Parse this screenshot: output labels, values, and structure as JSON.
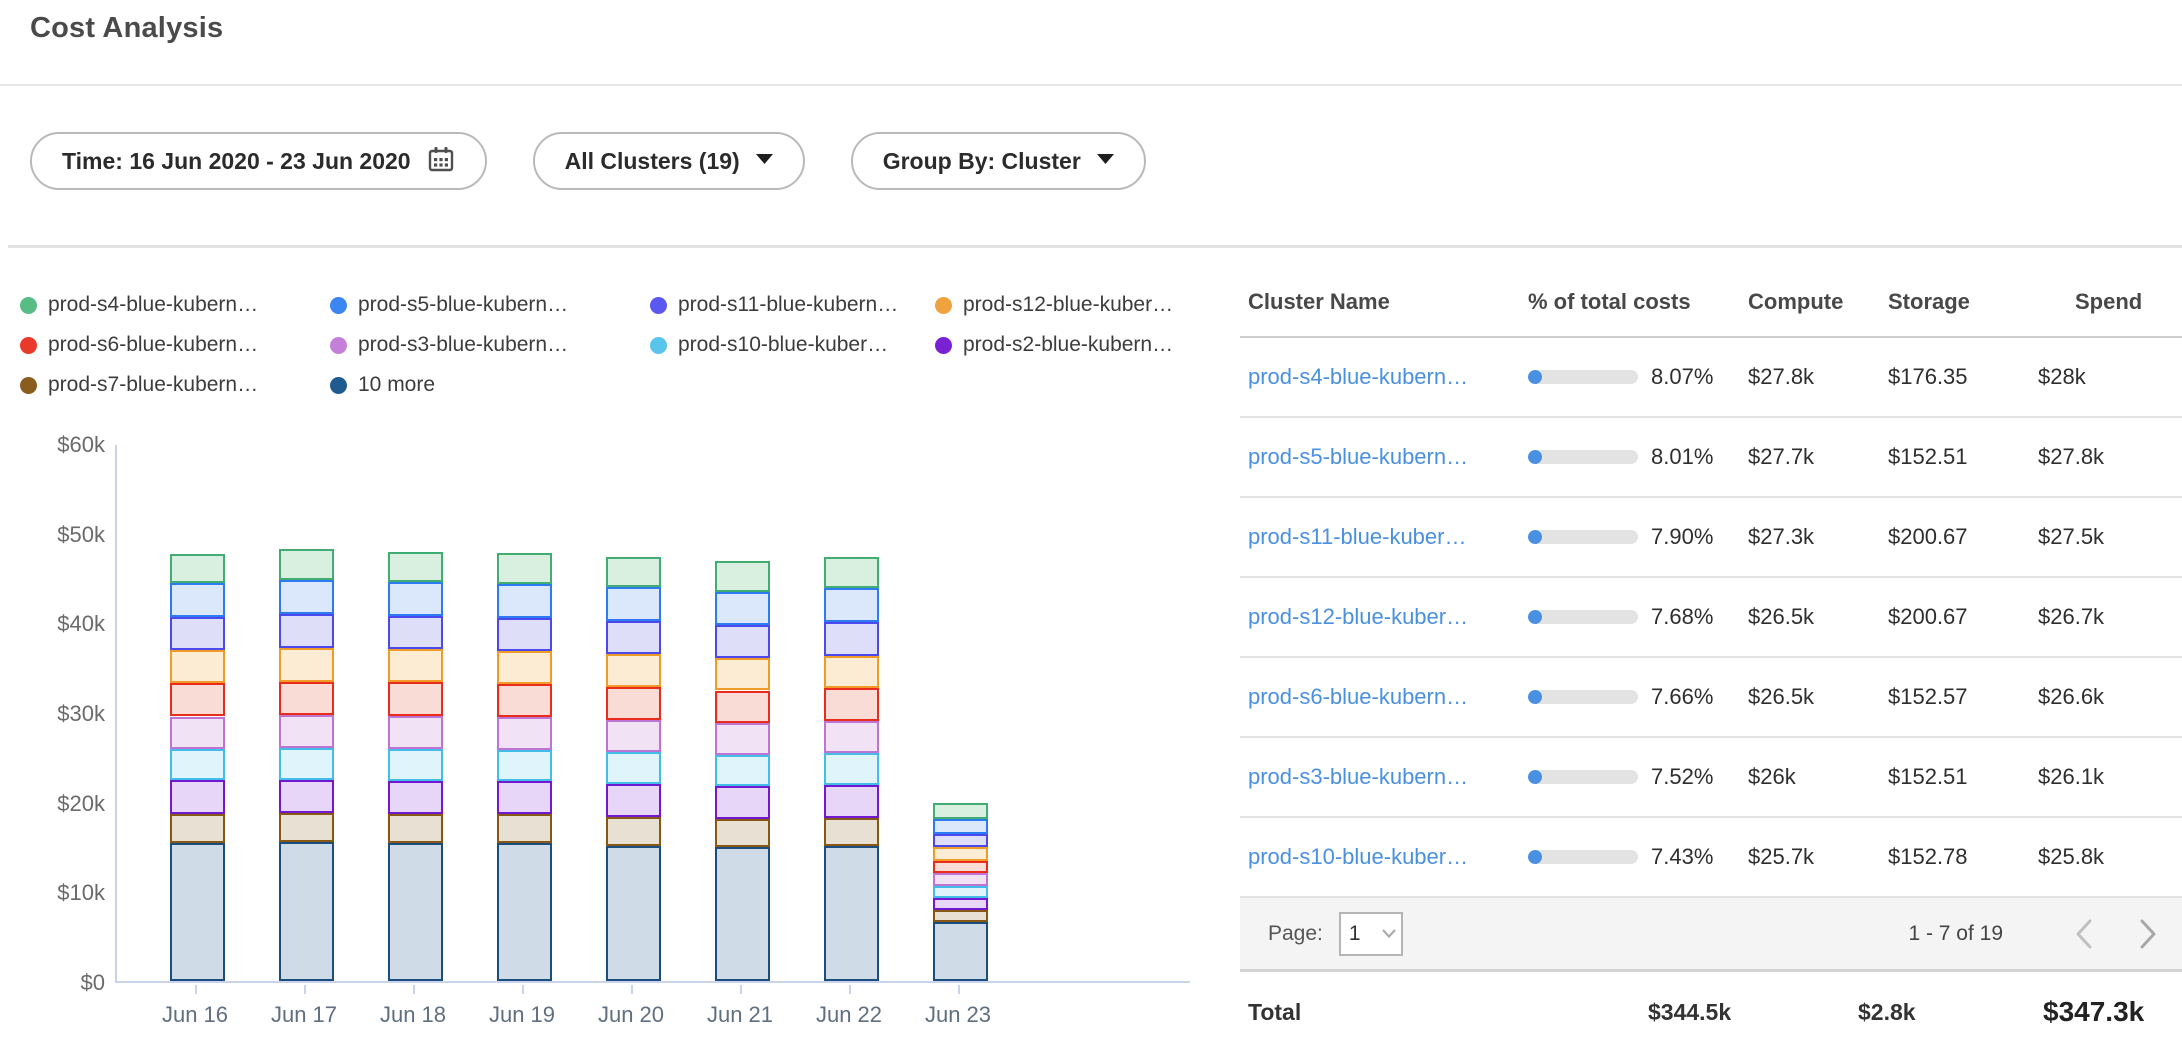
{
  "header": {
    "title": "Cost Analysis"
  },
  "filters": {
    "time": {
      "label": "Time: 16 Jun 2020 - 23 Jun 2020",
      "icon": "calendar"
    },
    "clusters": {
      "label": "All Clusters (19)",
      "icon": "caret-down"
    },
    "group_by": {
      "label": "Group By: Cluster",
      "icon": "caret-down"
    }
  },
  "chart_data": {
    "type": "bar",
    "stacked": true,
    "title": "",
    "xlabel": "",
    "ylabel": "",
    "value_unit": "USD thousands",
    "ylim": [
      0,
      60
    ],
    "grid": false,
    "legend_position": "top",
    "categories": [
      "Jun 16",
      "Jun 17",
      "Jun 18",
      "Jun 19",
      "Jun 20",
      "Jun 21",
      "Jun 22",
      "Jun 23"
    ],
    "y_ticks": [
      "$0",
      "$10k",
      "$20k",
      "$30k",
      "$40k",
      "$50k",
      "$60k"
    ],
    "legend": [
      {
        "label": "prod-s4-blue-kubern…",
        "color": "#57bd85"
      },
      {
        "label": "prod-s5-blue-kubern…",
        "color": "#3b86f0"
      },
      {
        "label": "prod-s11-blue-kubern…",
        "color": "#5b58f2"
      },
      {
        "label": "prod-s12-blue-kuber…",
        "color": "#f0a23f"
      },
      {
        "label": "prod-s6-blue-kubern…",
        "color": "#e8392b"
      },
      {
        "label": "prod-s3-blue-kubern…",
        "color": "#c480d8"
      },
      {
        "label": "prod-s10-blue-kuber…",
        "color": "#59c4ec"
      },
      {
        "label": "prod-s2-blue-kubern…",
        "color": "#7a22d3"
      },
      {
        "label": "prod-s7-blue-kubern…",
        "color": "#8a5c1e"
      },
      {
        "label": "10 more",
        "color": "#1f5b8e"
      }
    ],
    "series": [
      {
        "name": "10 more",
        "stroke": "#1b4e7e",
        "fill": "#cfdbe7",
        "values": [
          15.4,
          15.5,
          15.4,
          15.4,
          15.1,
          15.0,
          15.1,
          6.6
        ]
      },
      {
        "name": "prod-s7-blue-kubern…",
        "stroke": "#875814",
        "fill": "#e8e0d2",
        "values": [
          3.2,
          3.2,
          3.2,
          3.2,
          3.2,
          3.1,
          3.1,
          1.3
        ]
      },
      {
        "name": "prod-s2-blue-kubern…",
        "stroke": "#7018d2",
        "fill": "#e7d6f7",
        "values": [
          3.8,
          3.7,
          3.7,
          3.7,
          3.7,
          3.6,
          3.7,
          1.4
        ]
      },
      {
        "name": "prod-s10-blue-kuber…",
        "stroke": "#44bce8",
        "fill": "#e0f5fb",
        "values": [
          3.5,
          3.6,
          3.6,
          3.5,
          3.5,
          3.5,
          3.5,
          1.3
        ]
      },
      {
        "name": "prod-s3-blue-kubern…",
        "stroke": "#bd74d2",
        "fill": "#f1e2f5",
        "values": [
          3.6,
          3.7,
          3.7,
          3.6,
          3.6,
          3.6,
          3.6,
          1.4
        ]
      },
      {
        "name": "prod-s6-blue-kubern…",
        "stroke": "#ea2c1c",
        "fill": "#fadcd7",
        "values": [
          3.7,
          3.7,
          3.7,
          3.7,
          3.7,
          3.6,
          3.7,
          1.4
        ]
      },
      {
        "name": "prod-s12-blue-kuber…",
        "stroke": "#f09a28",
        "fill": "#fcecd4",
        "values": [
          3.7,
          3.7,
          3.7,
          3.7,
          3.7,
          3.6,
          3.6,
          1.6
        ]
      },
      {
        "name": "prod-s11-blue-kubern…",
        "stroke": "#4b49ee",
        "fill": "#dedef9",
        "values": [
          3.7,
          3.8,
          3.7,
          3.7,
          3.7,
          3.7,
          3.7,
          1.4
        ]
      },
      {
        "name": "prod-s5-blue-kubern…",
        "stroke": "#2c7bf2",
        "fill": "#dbe7fb",
        "values": [
          3.8,
          3.8,
          3.8,
          3.8,
          3.7,
          3.7,
          3.8,
          1.7
        ]
      },
      {
        "name": "prod-s4-blue-kubern…",
        "stroke": "#42ad72",
        "fill": "#d9efdf",
        "values": [
          3.2,
          3.5,
          3.4,
          3.4,
          3.4,
          3.4,
          3.5,
          1.7
        ]
      }
    ]
  },
  "table": {
    "columns": [
      "Cluster Name",
      "% of total costs",
      "Compute",
      "Storage",
      "Spend"
    ],
    "rows": [
      {
        "name": "prod-s4-blue-kubern…",
        "pct": "8.07%",
        "pct_value": 8.07,
        "compute": "$27.8k",
        "storage": "$176.35",
        "spend": "$28k"
      },
      {
        "name": "prod-s5-blue-kubern…",
        "pct": "8.01%",
        "pct_value": 8.01,
        "compute": "$27.7k",
        "storage": "$152.51",
        "spend": "$27.8k"
      },
      {
        "name": "prod-s11-blue-kuber…",
        "pct": "7.90%",
        "pct_value": 7.9,
        "compute": "$27.3k",
        "storage": "$200.67",
        "spend": "$27.5k"
      },
      {
        "name": "prod-s12-blue-kuber…",
        "pct": "7.68%",
        "pct_value": 7.68,
        "compute": "$26.5k",
        "storage": "$200.67",
        "spend": "$26.7k"
      },
      {
        "name": "prod-s6-blue-kubern…",
        "pct": "7.66%",
        "pct_value": 7.66,
        "compute": "$26.5k",
        "storage": "$152.57",
        "spend": "$26.6k"
      },
      {
        "name": "prod-s3-blue-kubern…",
        "pct": "7.52%",
        "pct_value": 7.52,
        "compute": "$26k",
        "storage": "$152.51",
        "spend": "$26.1k"
      },
      {
        "name": "prod-s10-blue-kuber…",
        "pct": "7.43%",
        "pct_value": 7.43,
        "compute": "$25.7k",
        "storage": "$152.78",
        "spend": "$25.8k"
      }
    ],
    "pagination": {
      "page_label": "Page:",
      "page_value": "1",
      "range": "1 - 7 of 19"
    },
    "total": {
      "label": "Total",
      "compute": "$344.5k",
      "storage": "$2.8k",
      "spend": "$347.3k"
    }
  },
  "colors": {
    "link": "#4a90e2",
    "progress_track": "#e3e3e3",
    "progress_fill": "#4a90e2",
    "axis": "#c9d3ea",
    "page_cursor_green": "#3a8e3c"
  }
}
